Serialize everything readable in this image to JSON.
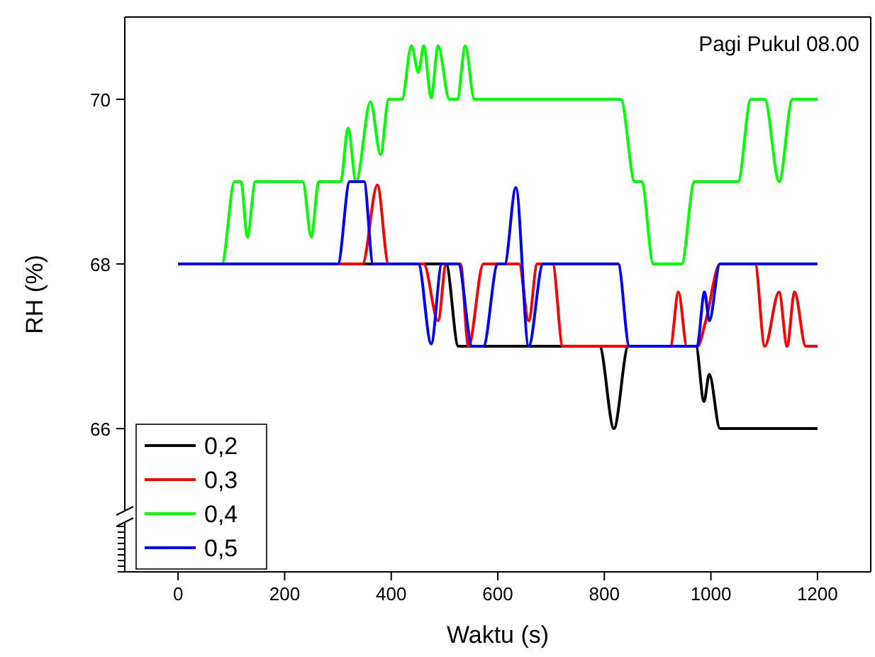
{
  "chart_data": {
    "type": "line",
    "xlabel": "Waktu (s)",
    "ylabel": "RH (%)",
    "annotations": [
      "Pagi Pukul 08.00"
    ],
    "xlim": [
      -100,
      1300
    ],
    "xticks": [
      0,
      200,
      400,
      600,
      800,
      1000,
      1200
    ],
    "ylim": [
      64.26,
      71
    ],
    "yticks": [
      66,
      68,
      70
    ],
    "legend": "bottom left",
    "grid": false,
    "line_style": "solid",
    "series": [
      {
        "name": "0,2",
        "color": "#000000",
        "x": [
          0,
          480,
          503,
          526,
          791,
          818,
          845,
          972,
          987,
          997,
          1017,
          1200
        ],
        "values": [
          68,
          68,
          68,
          67,
          67,
          66,
          67,
          67,
          66.33,
          66.66,
          66,
          66
        ]
      },
      {
        "name": "0,3",
        "color": "#ff0000",
        "x": [
          0,
          346,
          374,
          395,
          461,
          488,
          503,
          530,
          545,
          573,
          640,
          658,
          674,
          703,
          722,
          924,
          939,
          955,
          975,
          990,
          1017,
          1083,
          1101,
          1128,
          1143,
          1157,
          1178,
          1200
        ],
        "values": [
          68,
          68,
          68.96,
          68,
          68,
          67.31,
          68,
          68,
          67,
          68,
          68,
          67.31,
          68,
          68,
          67,
          67,
          67.66,
          67,
          67,
          67.3,
          68,
          68,
          67,
          67.66,
          67,
          67.66,
          67,
          67
        ]
      },
      {
        "name": "0,4",
        "color": "#00ff00",
        "x": [
          0,
          82,
          106,
          118,
          130,
          145,
          234,
          250,
          264,
          305,
          319,
          334,
          361,
          380,
          395,
          420,
          438,
          451,
          461,
          475,
          488,
          509,
          524,
          539,
          556,
          831,
          857,
          870,
          892,
          945,
          969,
          1051,
          1075,
          1101,
          1128,
          1153,
          1200
        ],
        "values": [
          68,
          68,
          69,
          69,
          68.33,
          69,
          69,
          68.33,
          69,
          69,
          69.65,
          69,
          69.97,
          69.33,
          70,
          70,
          70.65,
          70.33,
          70.65,
          70.02,
          70.65,
          70,
          70,
          70.65,
          70,
          70,
          69,
          69,
          68,
          68,
          69,
          69,
          70,
          70,
          69,
          70,
          70
        ]
      },
      {
        "name": "0,5",
        "color": "#0000ff",
        "x": [
          0,
          300,
          322,
          349,
          366,
          451,
          475,
          495,
          526,
          552,
          573,
          600,
          613,
          634,
          658,
          685,
          826,
          847,
          974,
          988,
          997,
          1017,
          1200
        ],
        "values": [
          68,
          68,
          69,
          69,
          68,
          68,
          67.03,
          68,
          68,
          67,
          67,
          68,
          68,
          68.93,
          67,
          68,
          68,
          67,
          67,
          67.66,
          67.31,
          68,
          68
        ]
      }
    ]
  }
}
